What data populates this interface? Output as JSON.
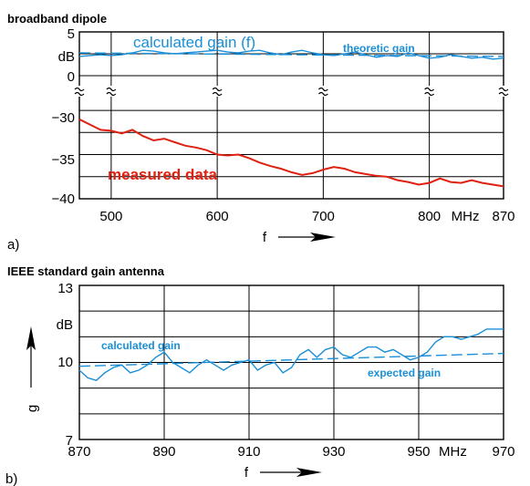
{
  "colors": {
    "measured": "#e02010",
    "calculated": "#1a8fd8",
    "axis": "#000000"
  },
  "chart_data": [
    {
      "panel": "a)",
      "type": "line",
      "title": "broadband dipole",
      "xlabel": "f",
      "x_unit": "MHz",
      "y_unit": "dB",
      "xlim": [
        470,
        870
      ],
      "x_ticks": [
        "500",
        "600",
        "700",
        "800",
        "870"
      ],
      "broken_y_axis": true,
      "upper": {
        "ylim": [
          0,
          5
        ],
        "y_ticks": [
          "5",
          "0"
        ],
        "series": [
          {
            "name": "calculated gain (f)",
            "style": "solid",
            "x": [
              470,
              480,
              490,
              500,
              510,
              520,
              530,
              540,
              550,
              560,
              570,
              580,
              590,
              600,
              610,
              620,
              630,
              640,
              650,
              660,
              670,
              680,
              690,
              700,
              710,
              720,
              730,
              740,
              750,
              760,
              770,
              780,
              790,
              800,
              810,
              820,
              830,
              840,
              850,
              860,
              870
            ],
            "y": [
              2.2,
              2.3,
              2.4,
              2.3,
              2.4,
              2.6,
              2.9,
              2.8,
              2.6,
              2.5,
              2.6,
              2.7,
              2.8,
              2.9,
              2.7,
              2.6,
              2.8,
              2.9,
              2.6,
              2.4,
              2.7,
              2.9,
              2.6,
              2.4,
              2.3,
              2.5,
              2.7,
              2.4,
              2.1,
              2.3,
              2.2,
              2.6,
              2.3,
              2.0,
              2.1,
              2.4,
              2.2,
              2.0,
              2.1,
              1.9,
              2.0
            ]
          },
          {
            "name": "theoretic gain",
            "style": "dashed",
            "x": [
              470,
              870
            ],
            "y": [
              2.6,
              2.2
            ]
          }
        ]
      },
      "lower": {
        "ylim": [
          -40,
          -27
        ],
        "y_ticks": [
          "-30",
          "-35",
          "-40"
        ],
        "series": [
          {
            "name": "measured data",
            "style": "solid",
            "x": [
              470,
              480,
              490,
              500,
              510,
              520,
              530,
              540,
              550,
              560,
              570,
              580,
              590,
              600,
              610,
              620,
              630,
              640,
              650,
              660,
              670,
              680,
              690,
              700,
              710,
              720,
              730,
              740,
              750,
              760,
              770,
              780,
              790,
              800,
              810,
              820,
              830,
              840,
              850,
              860,
              870
            ],
            "y": [
              -31.0,
              -31.6,
              -32.2,
              -32.3,
              -32.6,
              -32.2,
              -32.9,
              -33.4,
              -33.2,
              -33.6,
              -34.0,
              -34.2,
              -34.5,
              -35.0,
              -35.1,
              -35.0,
              -35.4,
              -35.9,
              -36.3,
              -36.6,
              -37.0,
              -37.3,
              -37.1,
              -36.7,
              -36.4,
              -36.6,
              -37.0,
              -37.2,
              -37.4,
              -37.5,
              -37.9,
              -38.1,
              -38.4,
              -38.2,
              -37.7,
              -38.1,
              -38.2,
              -37.9,
              -38.2,
              -38.4,
              -38.6
            ]
          }
        ]
      }
    },
    {
      "panel": "b)",
      "type": "line",
      "title": "IEEE standard gain antenna",
      "xlabel": "f",
      "ylabel": "g",
      "x_unit": "MHz",
      "y_unit": "dB",
      "xlim": [
        870,
        970
      ],
      "ylim": [
        7,
        13
      ],
      "x_ticks": [
        "870",
        "890",
        "910",
        "930",
        "950",
        "970"
      ],
      "y_ticks": [
        "13",
        "10",
        "7"
      ],
      "series": [
        {
          "name": "calculated gain",
          "style": "solid",
          "x": [
            870,
            872,
            874,
            876,
            878,
            880,
            882,
            884,
            886,
            888,
            890,
            892,
            894,
            896,
            898,
            900,
            902,
            904,
            906,
            908,
            910,
            912,
            914,
            916,
            918,
            920,
            922,
            924,
            926,
            928,
            930,
            932,
            934,
            936,
            938,
            940,
            942,
            944,
            946,
            948,
            950,
            952,
            954,
            956,
            958,
            960,
            962,
            964,
            966,
            968,
            970
          ],
          "y": [
            9.7,
            9.4,
            9.3,
            9.6,
            9.8,
            9.9,
            9.6,
            9.7,
            9.9,
            10.2,
            10.4,
            10.0,
            9.8,
            9.6,
            9.9,
            10.1,
            9.9,
            9.7,
            9.9,
            10.0,
            10.1,
            9.7,
            9.9,
            10.0,
            9.6,
            9.8,
            10.3,
            10.5,
            10.2,
            10.5,
            10.6,
            10.3,
            10.2,
            10.4,
            10.6,
            10.6,
            10.4,
            10.5,
            10.3,
            10.1,
            10.2,
            10.4,
            10.8,
            11.0,
            11.0,
            10.9,
            11.0,
            11.1,
            11.3,
            11.3,
            11.3
          ]
        },
        {
          "name": "expected gain",
          "style": "dashed",
          "x": [
            870,
            970
          ],
          "y": [
            9.85,
            10.35
          ]
        }
      ]
    }
  ]
}
